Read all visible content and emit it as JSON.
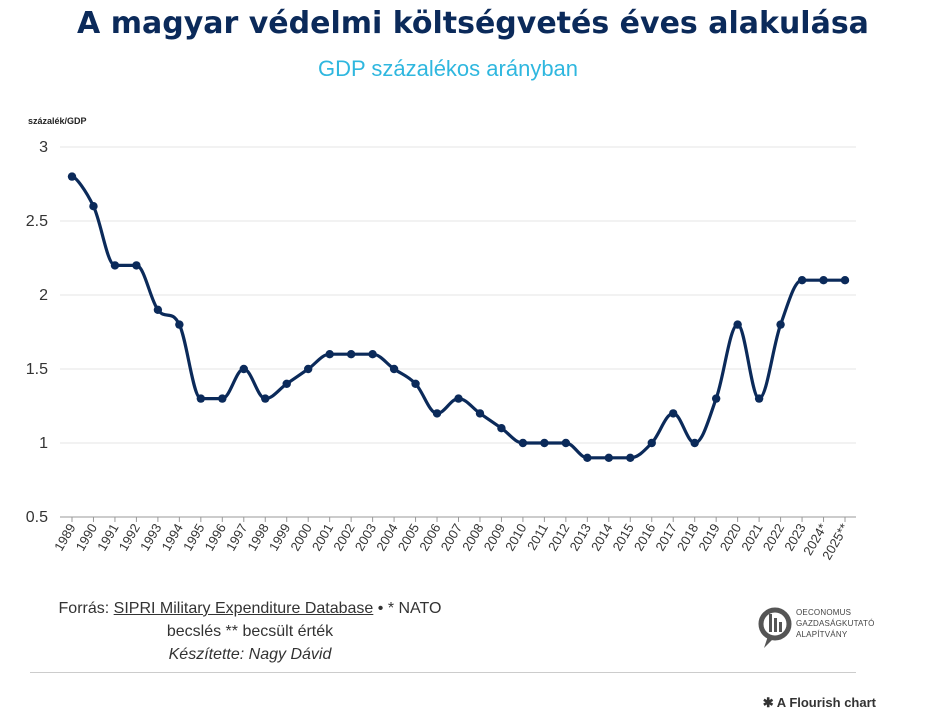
{
  "header": {
    "title": "A magyar védelmi költségvetés éves alakulása",
    "subtitle": "GDP százalékos arányban"
  },
  "chart_data": {
    "type": "line",
    "ylabel": "százalék/GDP",
    "ylim": [
      0.5,
      3
    ],
    "yticks": [
      "0.5",
      "1",
      "1.5",
      "2",
      "2.5",
      "3"
    ],
    "grid": true,
    "line_color": "#0b2a5a",
    "x": [
      "1989",
      "1990",
      "1991",
      "1992",
      "1993",
      "1994",
      "1995",
      "1996",
      "1997",
      "1998",
      "1999",
      "2000",
      "2001",
      "2002",
      "2003",
      "2004",
      "2005",
      "2006",
      "2007",
      "2008",
      "2009",
      "2010",
      "2011",
      "2012",
      "2013",
      "2014",
      "2015",
      "2016",
      "2017",
      "2018",
      "2019",
      "2020",
      "2021",
      "2022",
      "2023",
      "2024*",
      "2025**"
    ],
    "values": [
      2.8,
      2.6,
      2.2,
      2.2,
      1.9,
      1.8,
      1.3,
      1.3,
      1.5,
      1.3,
      1.4,
      1.5,
      1.6,
      1.6,
      1.6,
      1.5,
      1.4,
      1.2,
      1.3,
      1.2,
      1.1,
      1.0,
      1.0,
      1.0,
      0.9,
      0.9,
      0.9,
      1.0,
      1.2,
      1.0,
      1.3,
      1.8,
      1.3,
      1.8,
      2.1,
      2.1,
      2.1
    ]
  },
  "footer": {
    "source_prefix": "Forrás: ",
    "source_link": "SIPRI Military Expenditure Database",
    "source_suffix": " • * NATO",
    "line2": "becslés ** becsült érték",
    "author": "Készítette: Nagy Dávid"
  },
  "logo": {
    "line1": "OECONOMUS",
    "line2": "GAZDASÁGKUTATÓ",
    "line3": "ALAPÍTVÁNY"
  },
  "flourish": {
    "label": "A Flourish chart"
  }
}
